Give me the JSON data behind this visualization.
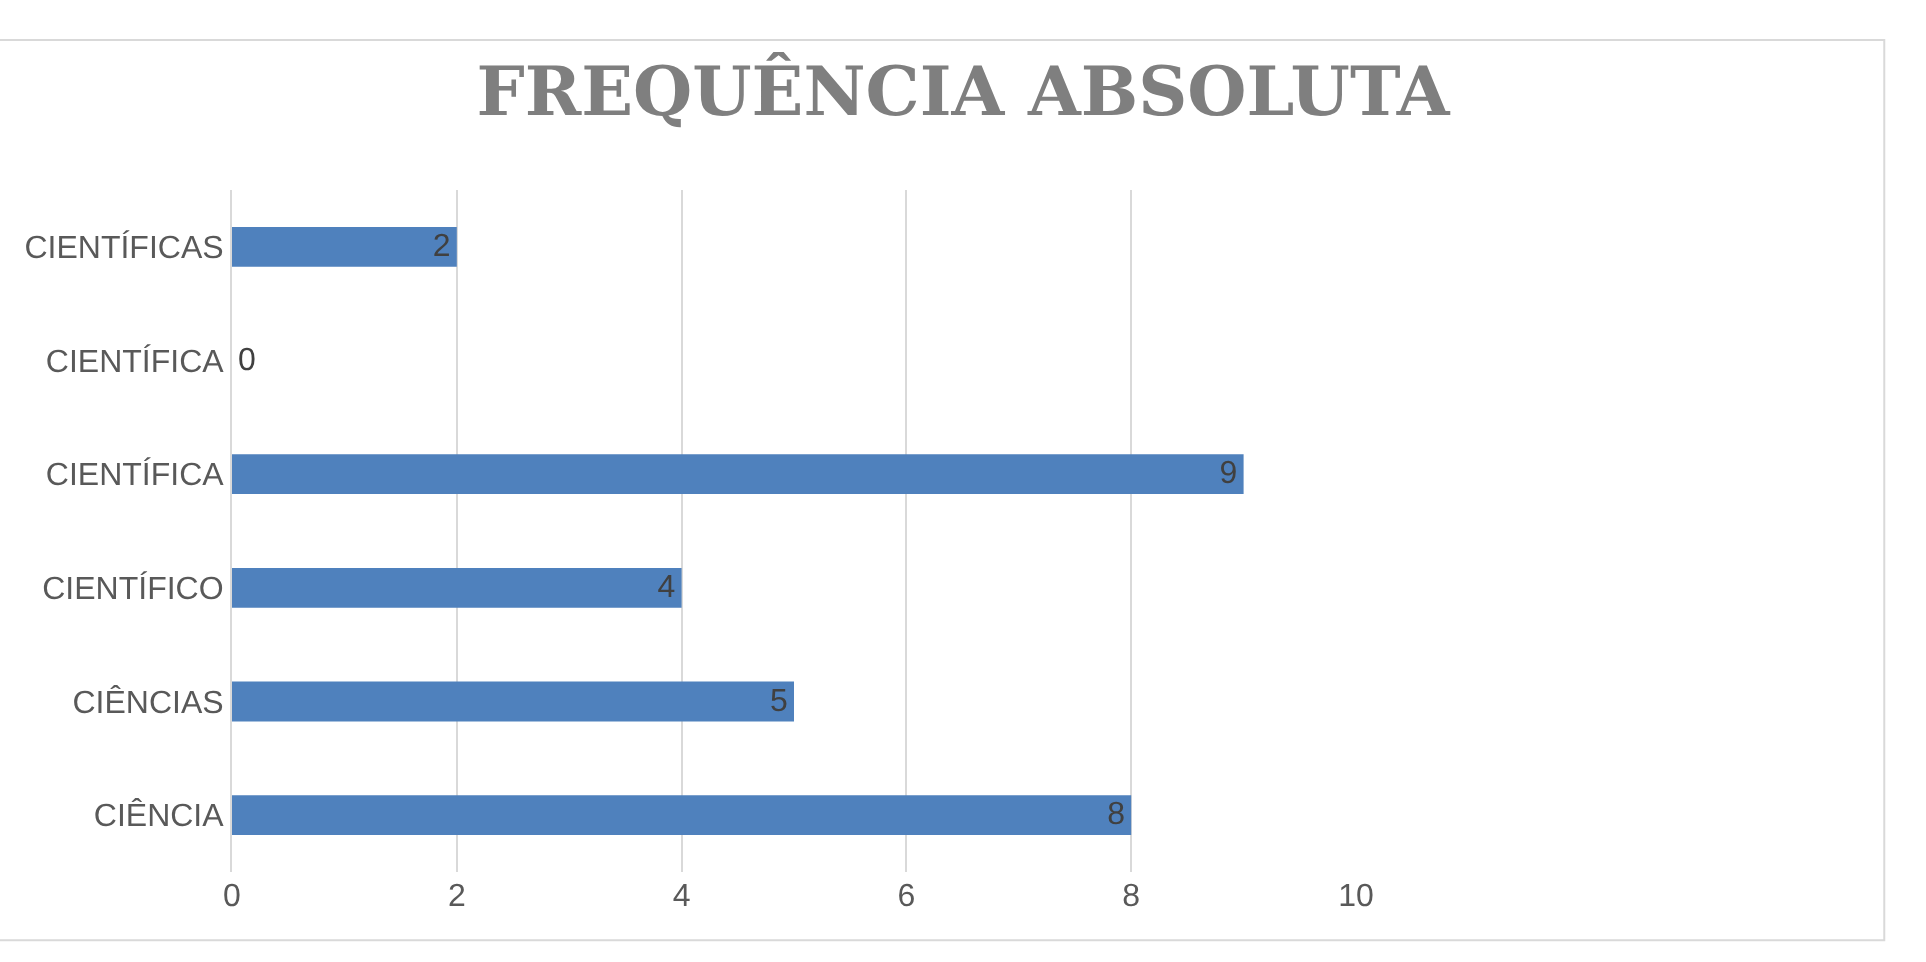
{
  "chart_data": {
    "type": "bar",
    "orientation": "horizontal",
    "title": "FREQUÊNCIA ABSOLUTA",
    "categories": [
      "CIENTÍFICAS",
      "CIENTÍFICA",
      "CIENTÍFICA",
      "CIENTÍFICO",
      "CIÊNCIAS",
      "CIÊNCIA"
    ],
    "values": [
      2,
      0,
      9,
      4,
      5,
      8
    ],
    "color": "#4f81bd",
    "xlim": [
      0,
      10
    ],
    "xticks": [
      0,
      2,
      4,
      6,
      8,
      10
    ],
    "grid": "x",
    "data_labels": true
  }
}
